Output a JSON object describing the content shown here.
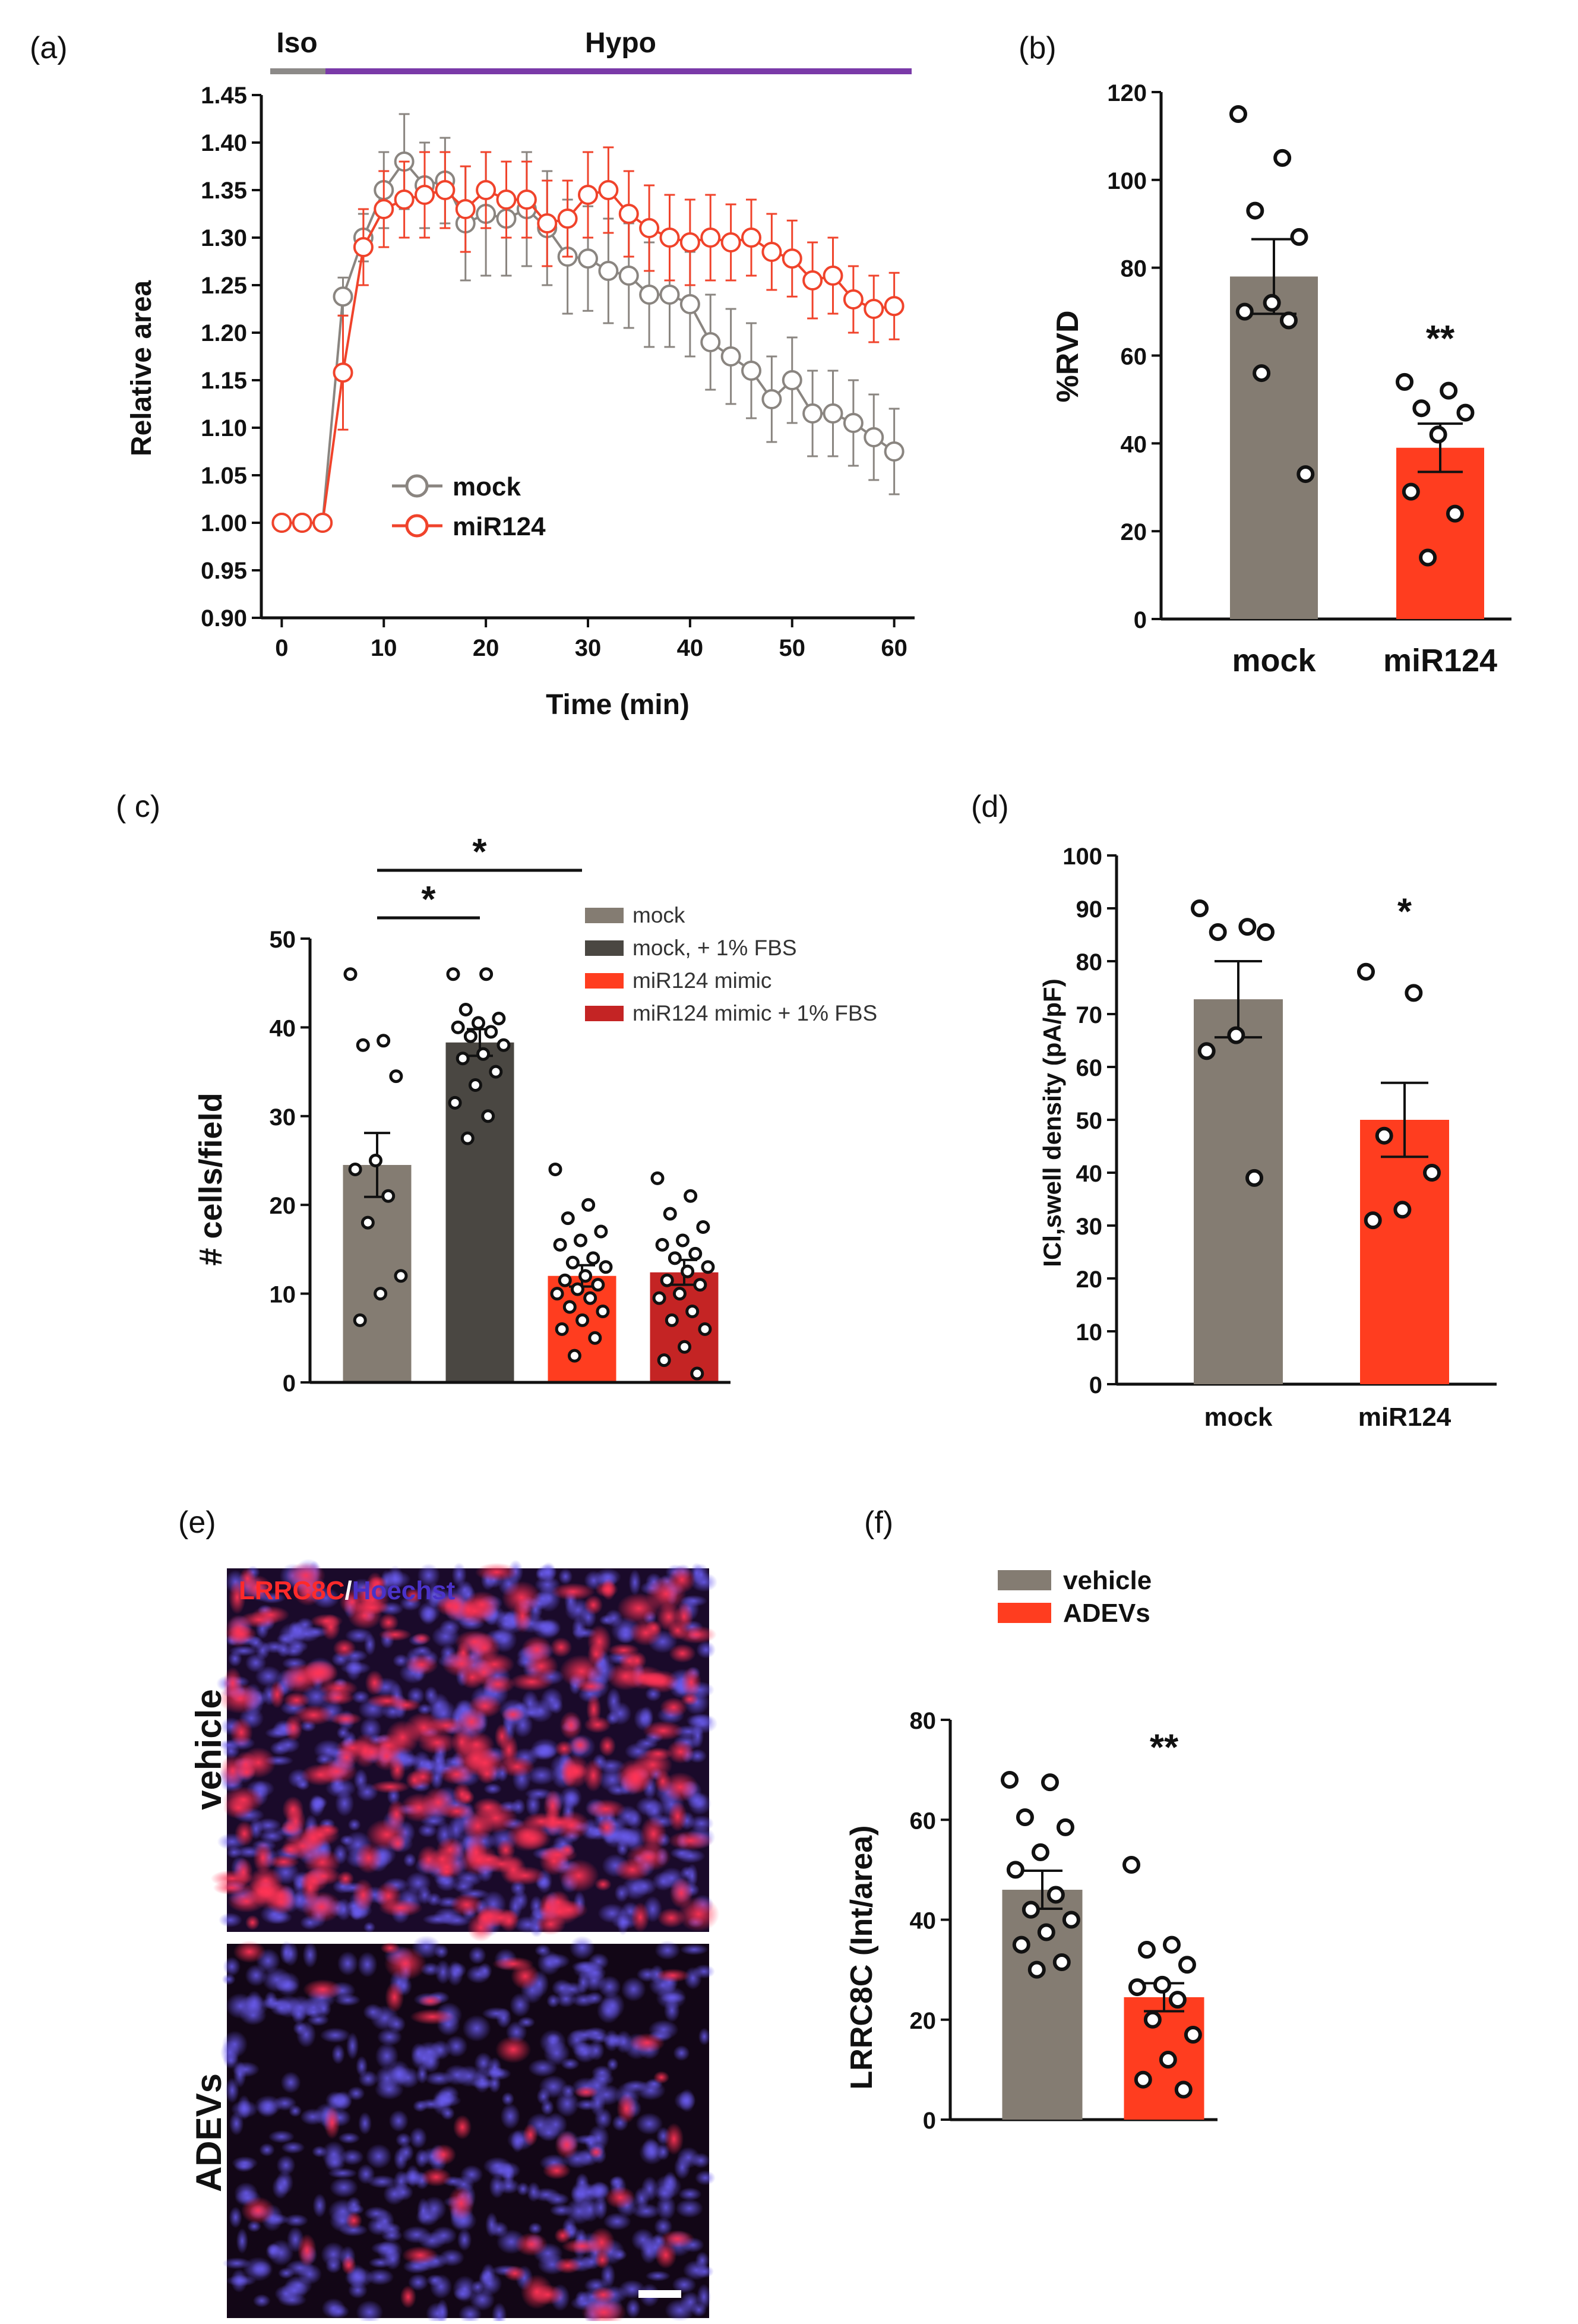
{
  "colors": {
    "mock": "#847c72",
    "mock_fbs": "#4a4742",
    "mir124": "#ff3d1f",
    "mir124_fbs": "#c42424",
    "mock_line": "#8a8580",
    "mir124_line": "#f0432b",
    "iso_bar": "#8c8a88",
    "hypo_bar": "#7a3aa8",
    "axis": "#111111"
  },
  "chart_data": [
    {
      "id": "a",
      "panel_label": "(a)",
      "type": "line",
      "title": "",
      "xlabel": "Time (min)",
      "ylabel": "Relative area",
      "xlim": [
        -2,
        62
      ],
      "ylim": [
        0.9,
        1.45
      ],
      "xticks": [
        "0",
        "10",
        "20",
        "30",
        "40",
        "50",
        "60"
      ],
      "yticks": [
        "0.90",
        "0.95",
        "1.00",
        "1.05",
        "1.10",
        "1.15",
        "1.20",
        "1.25",
        "1.30",
        "1.35",
        "1.40",
        "1.45"
      ],
      "phases": [
        {
          "label": "Iso",
          "start": -1,
          "end": 4
        },
        {
          "label": "Hypo",
          "start": 4,
          "end": 61
        }
      ],
      "legend": [
        "mock",
        "miR124"
      ],
      "x": [
        0,
        2,
        4,
        6,
        8,
        10,
        12,
        14,
        16,
        18,
        20,
        22,
        24,
        26,
        28,
        30,
        32,
        34,
        36,
        38,
        40,
        42,
        44,
        46,
        48,
        50,
        52,
        54,
        56,
        58,
        60
      ],
      "series": [
        {
          "name": "mock",
          "values": [
            1.0,
            1.0,
            1.0,
            1.238,
            1.3,
            1.35,
            1.38,
            1.355,
            1.36,
            1.315,
            1.325,
            1.32,
            1.33,
            1.31,
            1.28,
            1.278,
            1.265,
            1.26,
            1.24,
            1.24,
            1.23,
            1.19,
            1.175,
            1.16,
            1.13,
            1.15,
            1.115,
            1.115,
            1.105,
            1.09,
            1.075
          ],
          "errors": [
            0.008,
            0.008,
            0.008,
            0.02,
            0.025,
            0.04,
            0.05,
            0.045,
            0.045,
            0.06,
            0.065,
            0.06,
            0.06,
            0.06,
            0.06,
            0.055,
            0.055,
            0.055,
            0.055,
            0.055,
            0.055,
            0.05,
            0.05,
            0.05,
            0.045,
            0.045,
            0.045,
            0.045,
            0.045,
            0.045,
            0.045
          ]
        },
        {
          "name": "miR124",
          "values": [
            1.0,
            1.0,
            1.0,
            1.158,
            1.29,
            1.33,
            1.34,
            1.345,
            1.35,
            1.33,
            1.35,
            1.34,
            1.34,
            1.315,
            1.32,
            1.345,
            1.35,
            1.325,
            1.31,
            1.3,
            1.295,
            1.3,
            1.295,
            1.3,
            1.285,
            1.278,
            1.255,
            1.26,
            1.235,
            1.225,
            1.228
          ],
          "errors": [
            0.008,
            0.008,
            0.008,
            0.06,
            0.04,
            0.04,
            0.04,
            0.045,
            0.04,
            0.045,
            0.04,
            0.04,
            0.04,
            0.045,
            0.04,
            0.045,
            0.045,
            0.045,
            0.045,
            0.045,
            0.045,
            0.045,
            0.04,
            0.04,
            0.04,
            0.04,
            0.04,
            0.04,
            0.035,
            0.035,
            0.035
          ]
        }
      ]
    },
    {
      "id": "b",
      "panel_label": "(b)",
      "type": "bar",
      "ylabel": "%RVD",
      "ylim": [
        0,
        120
      ],
      "yticks": [
        "0",
        "20",
        "40",
        "60",
        "80",
        "100",
        "120"
      ],
      "categories": [
        "mock",
        "miR124"
      ],
      "values": [
        78,
        39
      ],
      "errors": [
        8.5,
        5.5
      ],
      "points": [
        [
          115,
          105,
          93,
          87,
          72,
          70,
          68,
          56,
          33
        ],
        [
          54,
          52,
          48,
          47,
          42,
          29,
          24,
          14
        ]
      ],
      "significance": [
        "",
        "**"
      ]
    },
    {
      "id": "c",
      "panel_label": "( c)",
      "type": "bar",
      "ylabel": "# cells/field",
      "ylim": [
        0,
        50
      ],
      "yticks": [
        "0",
        "10",
        "20",
        "30",
        "40",
        "50"
      ],
      "categories": [
        "mock",
        "mock, + 1% FBS",
        "miR124 mimic",
        "miR124 mimic + 1% FBS"
      ],
      "legend": [
        "mock",
        "mock, + 1% FBS",
        "miR124 mimic",
        "miR124 mimic + 1% FBS"
      ],
      "values": [
        24.5,
        38.3,
        12.0,
        12.4
      ],
      "errors": [
        3.6,
        1.5,
        1.2,
        1.4
      ],
      "points": [
        [
          46,
          38.5,
          38,
          34.5,
          25,
          24,
          21,
          18,
          12,
          10,
          7
        ],
        [
          46,
          46,
          42,
          41,
          40.5,
          40,
          39.5,
          39,
          38,
          37,
          36.5,
          35,
          33.5,
          31.5,
          30,
          27.5
        ],
        [
          24,
          20,
          18.5,
          17,
          16,
          15.5,
          14,
          13.5,
          13,
          12,
          11.5,
          11,
          10.5,
          10,
          9.5,
          8.5,
          8,
          7,
          6,
          5,
          3
        ],
        [
          23,
          21,
          19,
          17.5,
          16,
          15.5,
          14.5,
          14,
          13,
          12.5,
          11.5,
          11,
          10,
          9.5,
          8,
          7,
          6,
          4,
          2.5,
          1
        ]
      ],
      "comparisons": [
        {
          "from": 0,
          "to": 1,
          "label": "*"
        },
        {
          "from": 0,
          "to": 2,
          "label": "*"
        }
      ]
    },
    {
      "id": "d",
      "panel_label": "(d)",
      "type": "bar",
      "ylabel": "ICl,swell density (pA/pF)",
      "ylim": [
        0,
        100
      ],
      "yticks": [
        "0",
        "10",
        "20",
        "30",
        "40",
        "50",
        "60",
        "70",
        "80",
        "90",
        "100"
      ],
      "categories": [
        "mock",
        "miR124"
      ],
      "values": [
        72.8,
        50.0
      ],
      "errors": [
        7.2,
        7.0
      ],
      "points": [
        [
          90,
          86.5,
          85.5,
          85.5,
          66,
          63,
          39
        ],
        [
          78,
          74,
          47,
          40,
          33,
          31
        ]
      ],
      "significance": [
        "",
        "*"
      ]
    },
    {
      "id": "f",
      "panel_label": "(f)",
      "type": "bar",
      "ylabel": "LRRC8C (Int/area)",
      "ylim": [
        0,
        80
      ],
      "yticks": [
        "0",
        "20",
        "40",
        "60",
        "80"
      ],
      "categories": [
        "vehicle",
        "ADEVs"
      ],
      "legend": [
        "vehicle",
        "ADEVs"
      ],
      "values": [
        46,
        24.5
      ],
      "errors": [
        3.8,
        2.8
      ],
      "points": [
        [
          68,
          67.5,
          60.5,
          58.5,
          53.5,
          50,
          45,
          42,
          40,
          37.5,
          35,
          31.5,
          30
        ],
        [
          51,
          35,
          34,
          31,
          27,
          26.5,
          24,
          20,
          17,
          12,
          8,
          6
        ]
      ],
      "significance": [
        "",
        "**"
      ]
    }
  ],
  "panel_e": {
    "panel_label": "(e)",
    "stain_label": "LRRC8C",
    "stain_separator": "/",
    "counterstain_label": "Hoechst",
    "rows": [
      "vehicle",
      "ADEVs"
    ]
  }
}
